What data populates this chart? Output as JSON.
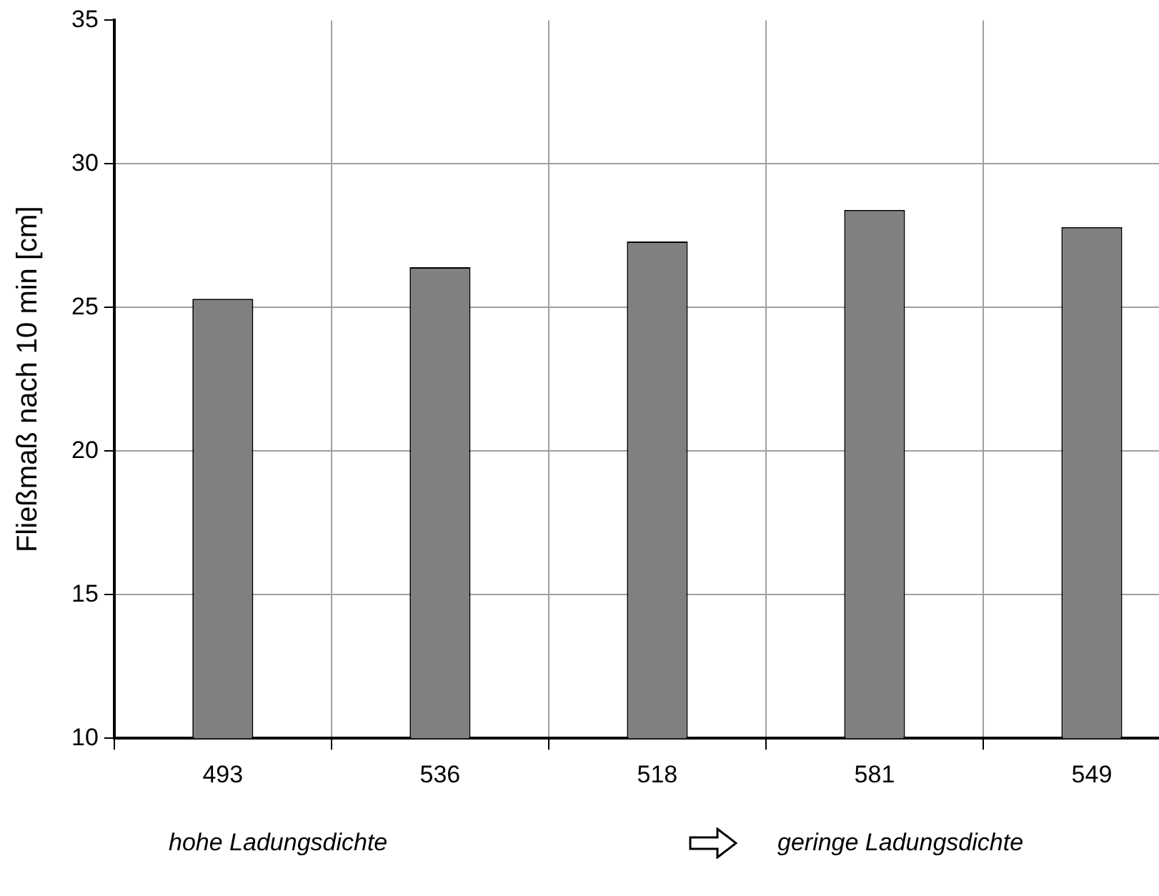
{
  "chart_data": {
    "type": "bar",
    "ylabel": "Fließmaß nach 10 min [cm]",
    "categories": [
      "493",
      "536",
      "518",
      "581",
      "549"
    ],
    "values": [
      25.3,
      26.4,
      27.3,
      28.4,
      27.8
    ],
    "color": "#808080",
    "ylim": [
      10,
      35
    ],
    "yticks": [
      10,
      15,
      20,
      25,
      30,
      35
    ],
    "grid": true,
    "annotations": [
      "hohe Ladungsdichte",
      "geringe Ladungsdichte"
    ]
  }
}
